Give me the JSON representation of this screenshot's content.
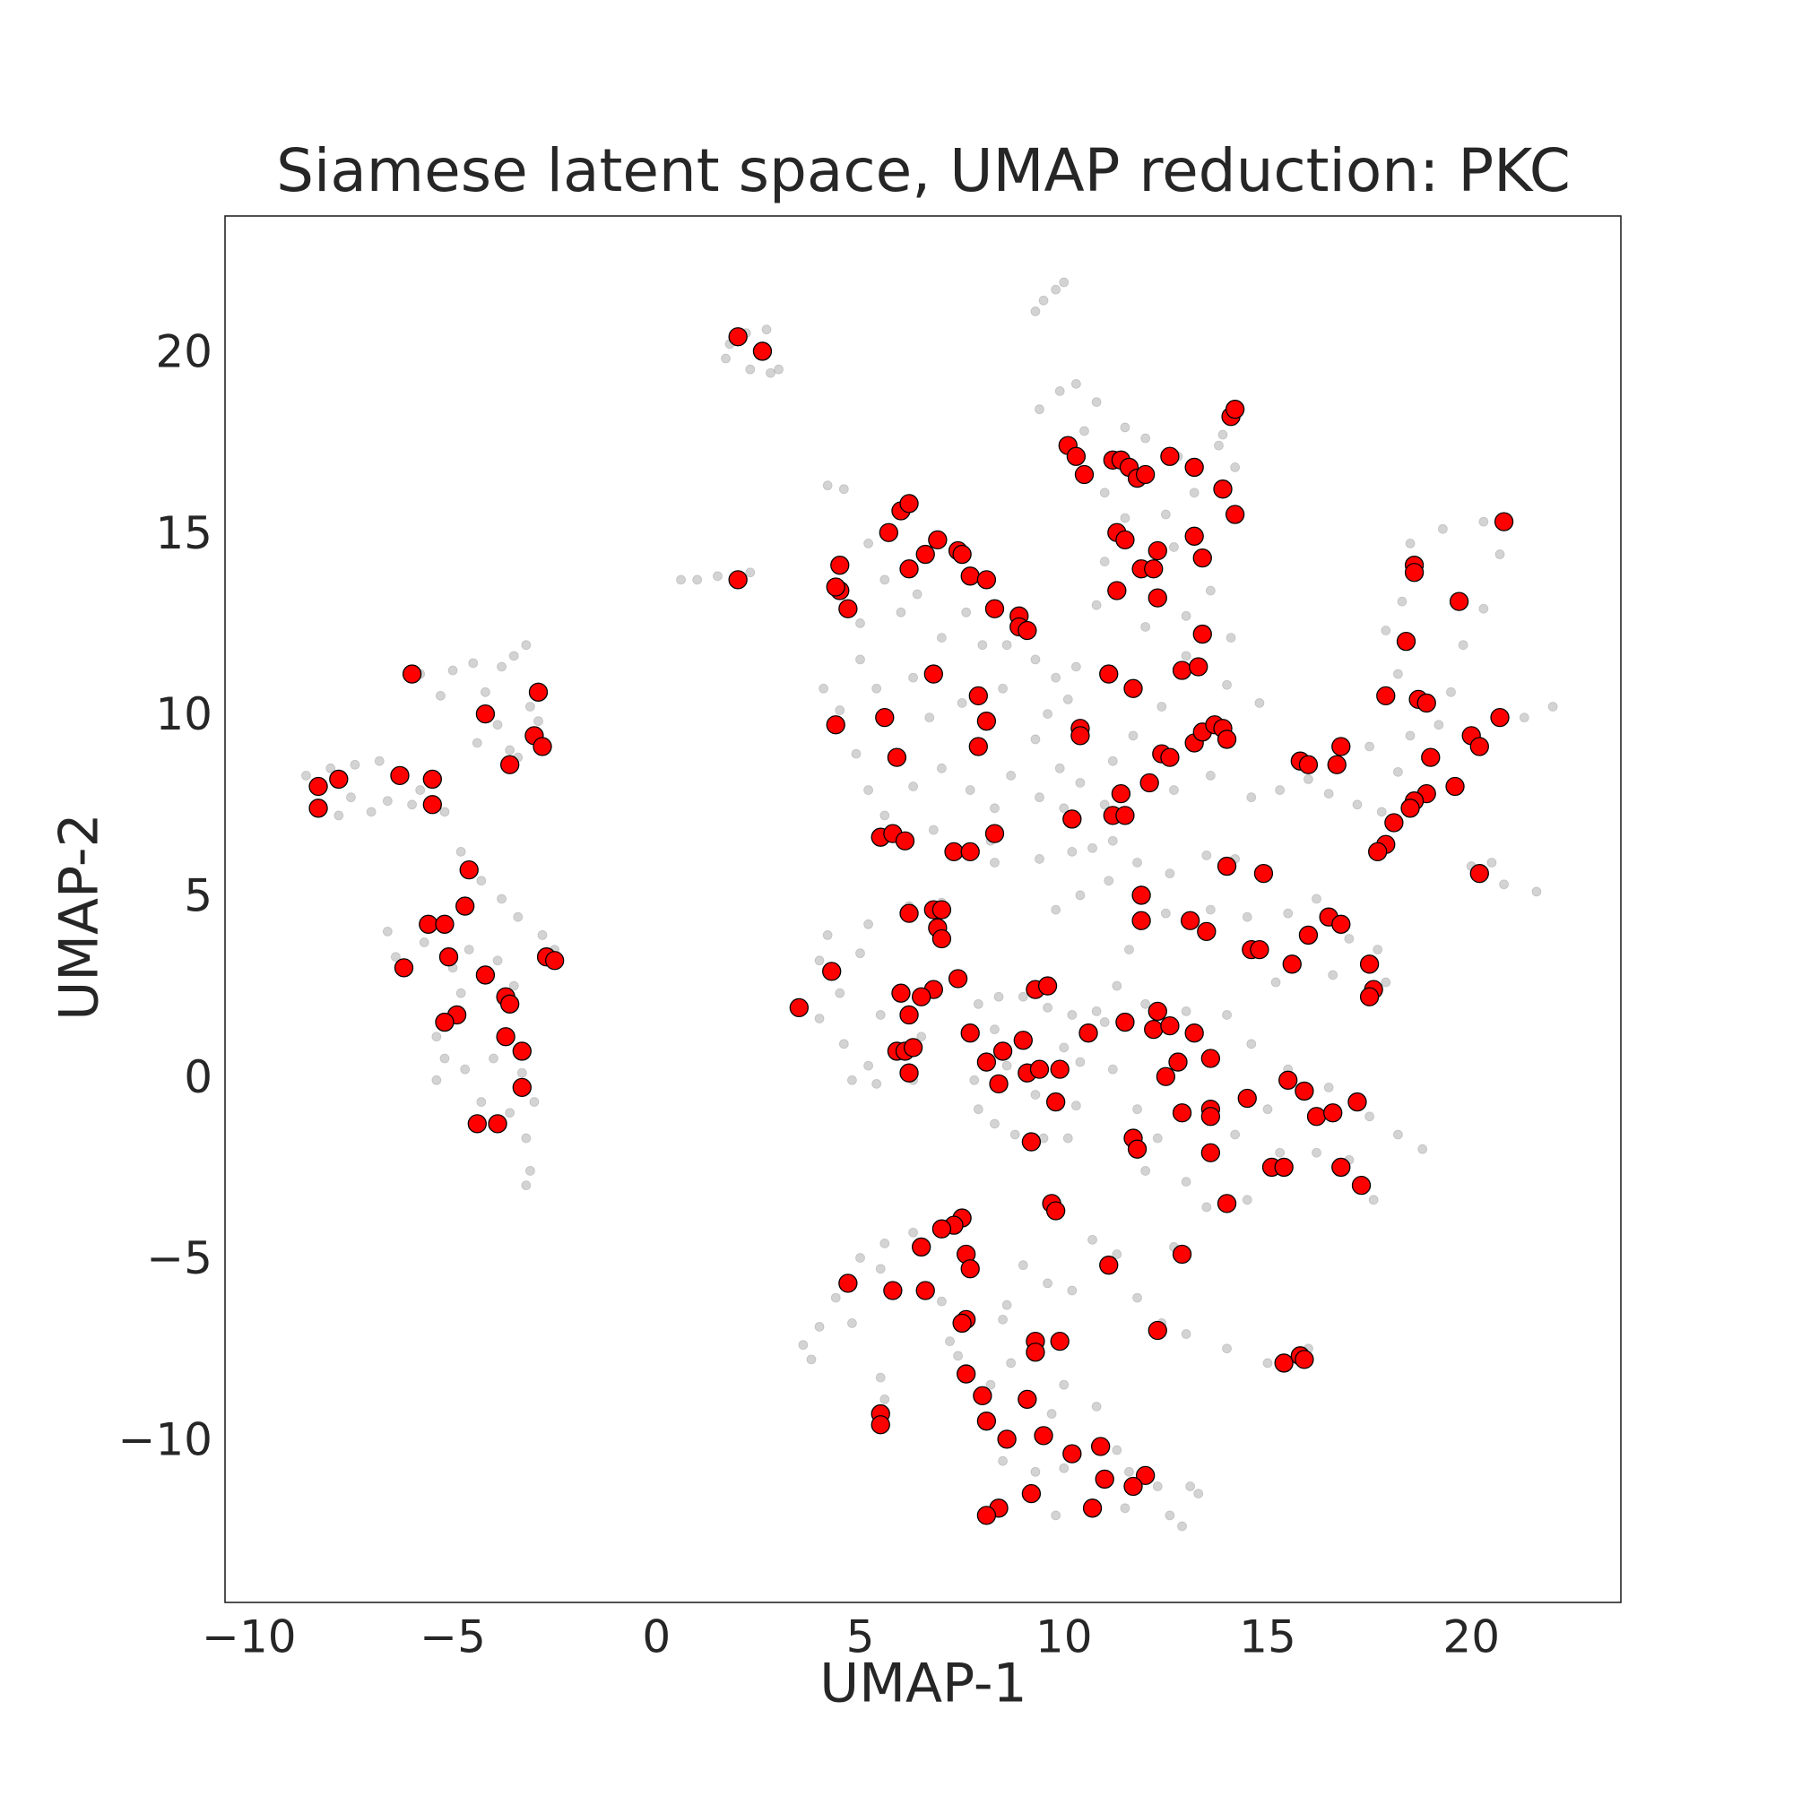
{
  "chart_data": {
    "type": "scatter",
    "title": "Siamese latent space, UMAP reduction: PKC",
    "x_label": "UMAP-1",
    "y_label": "UMAP-2",
    "xlim": [
      -10.59,
      23.67
    ],
    "ylim": [
      -14.4,
      23.83
    ],
    "xticks": [
      {
        "value": -10,
        "label": "−10"
      },
      {
        "value": -5,
        "label": "−5"
      },
      0,
      5,
      10,
      15,
      20
    ],
    "yticks": [
      {
        "value": -10,
        "label": "−10"
      },
      {
        "value": -5,
        "label": "−5"
      },
      0,
      5,
      10,
      15,
      20
    ],
    "grid": false,
    "series": [
      {
        "color": "#808080",
        "opacity": 0.35,
        "x": [
          9.5,
          9.8,
          10.0,
          9.3,
          1.8,
          2.2,
          2.7,
          1.7,
          2.3,
          2.8,
          3.0,
          1.0,
          1.5,
          0.6,
          2.3,
          -5.8,
          -5.3,
          -5.0,
          -4.5,
          -3.8,
          -3.2,
          -3.5,
          -4.2,
          -3.9,
          -4.4,
          -3.6,
          -3.1,
          -2.9,
          -3.4,
          -8.6,
          -8.0,
          -7.4,
          -6.8,
          -6.2,
          -7.5,
          -7.0,
          -6.6,
          -5.8,
          -5.2,
          -7.8,
          -6.0,
          -4.8,
          -4.3,
          -3.8,
          -3.4,
          -2.8,
          -2.5,
          -6.6,
          -6.4,
          -5.7,
          -5.0,
          -4.6,
          -3.9,
          -3.5,
          -4.8,
          -5.4,
          -5.2,
          -5.4,
          -4.7,
          -4.0,
          -3.3,
          -3.0,
          -3.6,
          -4.3,
          -3.2,
          -3.1,
          -3.2,
          4.2,
          4.6,
          5.2,
          5.6,
          5.0,
          6.0,
          6.4,
          7.0,
          7.6,
          8.0,
          8.6,
          9.3,
          9.8,
          10.3,
          10.1,
          9.6,
          9.3,
          9.9,
          10.4,
          10.0,
          9.4,
          8.7,
          8.3,
          7.7,
          7.0,
          6.3,
          5.6,
          5.2,
          4.9,
          4.1,
          4.5,
          5.4,
          6.3,
          6.7,
          7.5,
          8.5,
          5.0,
          6.8,
          8.2,
          8.3,
          9.4,
          10.2,
          10.4,
          9.8,
          9.4,
          9.9,
          10.3,
          10.8,
          11.5,
          12.0,
          12.8,
          13.2,
          13.8,
          13.9,
          14.2,
          10.5,
          11.0,
          11.5,
          12.5,
          12.7,
          11.0,
          10.8,
          12.0,
          13.0,
          13.6,
          14.1,
          13.0,
          14.0,
          14.8,
          12.4,
          11.7,
          11.2,
          11.0,
          12.7,
          13.6,
          10.7,
          14.6,
          15.3,
          16.0,
          16.5,
          17.2,
          17.8,
          18.2,
          18.5,
          18.2,
          17.9,
          18.3,
          18.5,
          19.3,
          20.3,
          20.7,
          20.3,
          19.8,
          19.5,
          19.2,
          20.6,
          21.3,
          22.0,
          17.5,
          20.0,
          20.8,
          21.6,
          20.5,
          11.2,
          11.8,
          12.6,
          13.5,
          14.2,
          15.0,
          12.5,
          13.6,
          14.5,
          15.5,
          16.2,
          17.0,
          17.7,
          17.9,
          16.6,
          15.2,
          11.1,
          11.6,
          11.3,
          10.8,
          10.4,
          4.2,
          5.2,
          6.2,
          7.0,
          4.0,
          4.5,
          4.0,
          4.6,
          5.2,
          4.8,
          5.4,
          6.3,
          5.5,
          6.5,
          5.0,
          7.9,
          8.4,
          9.0,
          9.6,
          10.2,
          7.8,
          7.9,
          8.3,
          8.8,
          9.5,
          10.1,
          10.3,
          8.6,
          9.3,
          10.0,
          8.3,
          11.0,
          12.0,
          13.0,
          14.0,
          14.6,
          15.5,
          16.5,
          17.5,
          18.2,
          18.8,
          11.2,
          11.8,
          12.3,
          12.0,
          13.0,
          13.5,
          14.5,
          15.3,
          16.2,
          17.0,
          17.6,
          14.2,
          15.0,
          5.0,
          5.6,
          6.3,
          7.2,
          4.4,
          4.0,
          3.6,
          3.8,
          4.8,
          5.5,
          7.0,
          7.2,
          7.4,
          8.6,
          9.0,
          9.6,
          10.2,
          10.7,
          11.3,
          11.8,
          12.4,
          13.0,
          14.0,
          15.0,
          16.0,
          12.7,
          5.5,
          5.6,
          8.5,
          8.7,
          8.2,
          8.5,
          9.3,
          10.0,
          10.8,
          11.3,
          11.6,
          12.3,
          12.6,
          12.9,
          11.5,
          9.8,
          13.1,
          13.3,
          10.0,
          9.7
        ],
        "y": [
          21.5,
          21.8,
          22.0,
          21.2,
          20.3,
          20.6,
          20.7,
          19.9,
          19.6,
          19.5,
          19.6,
          13.8,
          13.9,
          13.8,
          14.0,
          11.2,
          10.6,
          11.3,
          11.5,
          11.4,
          12.0,
          11.7,
          10.7,
          9.8,
          9.3,
          9.1,
          10.3,
          9.9,
          8.9,
          8.4,
          8.6,
          8.7,
          8.8,
          8.5,
          7.8,
          7.4,
          7.7,
          8.0,
          7.4,
          7.3,
          7.6,
          6.3,
          5.5,
          5.0,
          4.5,
          4.0,
          3.6,
          4.1,
          3.4,
          3.8,
          3.1,
          3.6,
          3.3,
          2.6,
          2.4,
          1.2,
          0.6,
          0.0,
          0.3,
          0.6,
          0.2,
          -0.6,
          -0.9,
          -0.6,
          -1.6,
          -2.5,
          -2.9,
          16.4,
          16.3,
          14.8,
          13.8,
          12.6,
          12.9,
          13.4,
          12.2,
          12.9,
          12.0,
          12.0,
          11.6,
          11.1,
          11.4,
          10.5,
          10.1,
          9.4,
          8.6,
          8.2,
          7.5,
          7.8,
          8.4,
          7.5,
          8.0,
          8.6,
          8.1,
          7.3,
          8.0,
          9.0,
          10.8,
          10.2,
          10.8,
          11.1,
          10.0,
          10.4,
          10.8,
          11.6,
          6.9,
          6.6,
          6.0,
          6.1,
          6.3,
          5.1,
          4.7,
          18.5,
          19.0,
          19.2,
          18.7,
          18.0,
          17.7,
          17.2,
          16.2,
          17.5,
          17.8,
          16.9,
          17.9,
          16.2,
          15.5,
          15.6,
          14.7,
          14.3,
          13.1,
          12.5,
          12.8,
          13.5,
          12.2,
          11.7,
          10.9,
          10.4,
          10.3,
          9.5,
          8.8,
          7.6,
          8.0,
          8.4,
          6.4,
          7.8,
          8.0,
          8.3,
          7.9,
          7.6,
          7.4,
          8.5,
          9.5,
          11.2,
          12.4,
          13.2,
          14.8,
          15.2,
          15.4,
          14.5,
          13.0,
          12.0,
          10.7,
          9.8,
          10.0,
          10.0,
          10.3,
          9.2,
          5.9,
          5.4,
          5.2,
          6.0,
          6.6,
          6.0,
          5.7,
          6.2,
          6.1,
          5.8,
          4.6,
          4.7,
          4.5,
          4.6,
          5.0,
          3.9,
          3.6,
          2.7,
          2.9,
          2.7,
          5.5,
          3.6,
          2.6,
          1.9,
          0.5,
          4.0,
          4.3,
          4.8,
          4.9,
          3.3,
          2.4,
          1.7,
          1.0,
          0.4,
          0.0,
          -0.1,
          0.0,
          1.8,
          1.2,
          3.5,
          2.1,
          2.3,
          2.3,
          2.0,
          1.8,
          0.0,
          -0.8,
          -1.2,
          -1.5,
          -1.6,
          -1.6,
          -0.7,
          0.4,
          -0.4,
          0.9,
          1.4,
          1.6,
          2.1,
          1.9,
          1.8,
          1.0,
          0.3,
          -0.2,
          -1.0,
          -1.5,
          -1.9,
          0.3,
          -0.8,
          -1.6,
          -2.5,
          -2.8,
          -3.5,
          -3.3,
          -2.0,
          -2.0,
          -2.2,
          -3.3,
          -1.5,
          -0.8,
          -4.9,
          -4.5,
          -4.2,
          -4.0,
          -6.0,
          -6.8,
          -7.3,
          -7.7,
          -6.7,
          -5.2,
          -6.1,
          -7.2,
          -7.6,
          -6.2,
          -5.1,
          -5.6,
          -5.8,
          -4.4,
          -4.8,
          -6.0,
          -6.7,
          -7.0,
          -7.4,
          -7.8,
          -7.4,
          -4.6,
          -8.2,
          -8.8,
          -6.6,
          -7.8,
          -8.4,
          -10.5,
          -10.8,
          -10.7,
          -9.0,
          -10.2,
          -10.8,
          -11.2,
          -12.0,
          -12.3,
          -11.8,
          -12.0,
          -11.2,
          -11.4,
          -8.4,
          -9.2
        ]
      },
      {
        "color": "#ff0000",
        "edgecolor": "#000000",
        "opacity": 1,
        "x": [
          2.0,
          2.6,
          2.0,
          -6.0,
          -2.9,
          -4.2,
          -3.0,
          -2.8,
          -3.6,
          -8.3,
          -7.8,
          -6.3,
          -5.5,
          -8.3,
          -5.5,
          -4.6,
          -4.7,
          -5.6,
          -5.2,
          -5.1,
          -6.2,
          -4.2,
          -2.7,
          -2.5,
          -3.7,
          -3.6,
          -4.9,
          -5.2,
          -3.7,
          -3.3,
          -3.3,
          -4.4,
          -3.9,
          3.5,
          4.3,
          4.4,
          4.5,
          4.4,
          4.5,
          4.7,
          5.6,
          5.9,
          5.7,
          6.0,
          6.2,
          6.2,
          6.6,
          6.9,
          7.4,
          7.5,
          7.7,
          8.1,
          8.3,
          8.9,
          8.9,
          9.1,
          6.8,
          7.9,
          8.1,
          7.9,
          5.5,
          5.8,
          6.1,
          7.3,
          7.7,
          8.3,
          6.2,
          6.8,
          7.0,
          6.9,
          7.0,
          7.4,
          6.8,
          6.5,
          6.0,
          6.2,
          5.9,
          6.1,
          6.3,
          6.2,
          7.7,
          8.1,
          8.4,
          8.5,
          9.0,
          9.1,
          9.4,
          9.9,
          9.8,
          9.3,
          9.6,
          9.2,
          10.6,
          10.1,
          10.3,
          10.5,
          11.2,
          11.4,
          11.6,
          11.8,
          12.0,
          12.6,
          13.2,
          13.9,
          14.1,
          14.2,
          14.2,
          11.3,
          11.5,
          11.3,
          11.9,
          12.2,
          12.3,
          12.3,
          13.2,
          13.4,
          13.4,
          12.9,
          13.3,
          11.1,
          11.7,
          10.4,
          10.4,
          12.4,
          12.6,
          13.2,
          13.4,
          13.7,
          13.9,
          14.0,
          12.1,
          11.4,
          11.2,
          11.5,
          10.2,
          14.0,
          14.9,
          11.9,
          11.9,
          13.1,
          13.5,
          14.6,
          14.8,
          15.6,
          16.0,
          16.5,
          16.8,
          17.5,
          17.6,
          17.5,
          12.3,
          11.5,
          12.2,
          12.6,
          13.2,
          12.8,
          13.6,
          12.5,
          13.6,
          13.6,
          12.9,
          14.5,
          15.5,
          15.9,
          16.2,
          16.6,
          17.2,
          11.7,
          11.8,
          13.6,
          15.1,
          15.4,
          16.8,
          17.3,
          14.0,
          9.7,
          9.8,
          7.5,
          7.3,
          7.0,
          6.5,
          7.6,
          7.7,
          4.7,
          11.1,
          12.9,
          5.8,
          6.6,
          7.6,
          7.5,
          9.9,
          9.3,
          9.3,
          12.3,
          15.4,
          15.8,
          15.9,
          7.6,
          8.0,
          9.1,
          5.5,
          5.5,
          8.1,
          8.6,
          9.5,
          10.2,
          10.9,
          11.0,
          12.0,
          11.7,
          9.2,
          8.4,
          8.1,
          10.7,
          16.7,
          16.8,
          15.8,
          16.0,
          17.9,
          18.7,
          18.9,
          18.4,
          18.6,
          18.6,
          19.7,
          20.8,
          19.0,
          20.0,
          20.2,
          20.7,
          19.6,
          18.9,
          18.6,
          18.5,
          18.1,
          17.9,
          17.7,
          20.2
        ],
        "y": [
          20.5,
          20.1,
          13.8,
          11.2,
          10.7,
          10.1,
          9.5,
          9.2,
          8.7,
          8.1,
          8.3,
          8.4,
          8.3,
          7.5,
          7.6,
          5.8,
          4.8,
          4.3,
          4.3,
          3.4,
          3.1,
          2.9,
          3.4,
          3.3,
          2.3,
          2.1,
          1.8,
          1.6,
          1.2,
          0.8,
          -0.2,
          -1.2,
          -1.2,
          2.0,
          3.0,
          9.8,
          13.5,
          13.6,
          14.2,
          13.0,
          10.0,
          8.9,
          15.1,
          15.7,
          15.9,
          14.1,
          14.5,
          14.9,
          14.6,
          14.5,
          13.9,
          13.8,
          13.0,
          12.8,
          12.5,
          12.4,
          11.2,
          10.6,
          9.9,
          9.2,
          6.7,
          6.8,
          6.6,
          6.3,
          6.3,
          6.8,
          4.6,
          4.7,
          4.7,
          4.2,
          3.9,
          2.8,
          2.5,
          2.3,
          2.4,
          1.8,
          0.8,
          0.8,
          0.9,
          0.2,
          1.3,
          0.5,
          -0.1,
          0.8,
          1.1,
          0.2,
          0.3,
          0.3,
          -0.6,
          2.5,
          2.6,
          -1.7,
          1.3,
          17.5,
          17.2,
          16.7,
          17.1,
          17.1,
          16.9,
          16.6,
          16.7,
          17.2,
          16.9,
          16.3,
          18.3,
          18.5,
          15.6,
          15.1,
          14.9,
          13.5,
          14.1,
          14.1,
          14.6,
          13.3,
          15.0,
          14.4,
          12.3,
          11.3,
          11.4,
          11.2,
          10.8,
          9.7,
          9.5,
          9.0,
          8.9,
          9.3,
          9.6,
          9.8,
          9.7,
          9.4,
          8.2,
          7.9,
          7.3,
          7.3,
          7.2,
          5.9,
          5.7,
          5.1,
          4.4,
          4.4,
          4.1,
          3.6,
          3.6,
          3.2,
          4.0,
          4.5,
          4.3,
          3.2,
          2.5,
          2.3,
          1.9,
          1.6,
          1.4,
          1.5,
          1.3,
          0.5,
          0.6,
          0.1,
          -0.8,
          -1.0,
          -0.9,
          -0.5,
          0.0,
          -0.3,
          -1.0,
          -0.9,
          -0.6,
          -1.6,
          -1.9,
          -2.0,
          -2.4,
          -2.4,
          -2.4,
          -2.9,
          -3.4,
          -3.4,
          -3.6,
          -3.8,
          -4.0,
          -4.1,
          -4.6,
          -4.8,
          -5.2,
          -5.6,
          -5.1,
          -4.8,
          -5.8,
          -5.8,
          -6.6,
          -6.7,
          -7.2,
          -7.2,
          -7.5,
          -6.9,
          -7.8,
          -7.6,
          -7.7,
          -8.1,
          -8.7,
          -8.8,
          -9.2,
          -9.5,
          -9.4,
          -9.9,
          -9.8,
          -10.3,
          -10.1,
          -11.0,
          -10.9,
          -11.2,
          -11.4,
          -11.8,
          -12.0,
          -11.8,
          8.7,
          9.2,
          8.8,
          8.7,
          10.6,
          10.5,
          10.4,
          12.1,
          14.2,
          14.0,
          13.2,
          15.4,
          8.9,
          9.5,
          9.2,
          10.0,
          8.1,
          7.9,
          7.7,
          7.5,
          7.1,
          6.5,
          6.3,
          5.7
        ]
      }
    ]
  }
}
